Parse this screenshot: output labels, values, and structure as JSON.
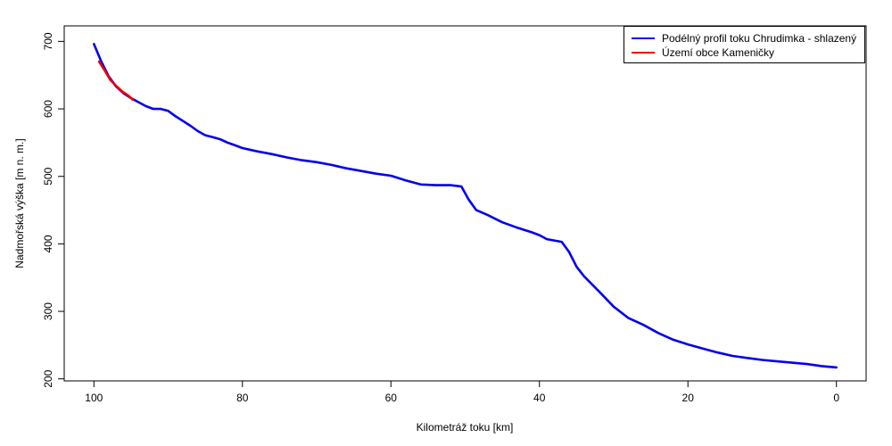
{
  "chart_data": {
    "type": "line",
    "xlabel": "Kilometráž toku [km]",
    "ylabel": "Nadmořská výška [m n. m.]",
    "xlim": [
      104,
      -4
    ],
    "ylim": [
      197,
      723
    ],
    "x_reversed": true,
    "x_ticks": [
      "100",
      "80",
      "60",
      "40",
      "20",
      "0"
    ],
    "y_ticks": [
      "200",
      "300",
      "400",
      "500",
      "600",
      "700"
    ],
    "legend_position": "top-right",
    "grid": false,
    "series": [
      {
        "name": "Podélný profil toku Chrudimka - shlazený",
        "color": "#0000ee",
        "x": [
          100,
          99,
          98,
          97,
          96,
          95,
          94,
          93,
          92,
          91,
          90,
          89,
          88,
          87,
          86,
          85,
          84,
          83,
          82,
          81,
          80,
          78,
          76,
          74,
          72,
          70,
          68,
          66,
          64,
          62,
          60,
          58,
          56,
          54,
          52,
          50.5,
          49.5,
          48.5,
          47,
          45,
          43,
          41,
          40,
          39,
          38,
          37,
          36,
          35,
          34,
          32,
          30,
          28,
          26,
          24,
          22,
          20,
          18,
          16,
          14,
          12,
          10,
          8,
          6,
          4,
          2,
          0
        ],
        "y": [
          696,
          670,
          648,
          633,
          623,
          616,
          610,
          604,
          600,
          600,
          597,
          589,
          582,
          575,
          567,
          561,
          558,
          555,
          550,
          546,
          542,
          537,
          533,
          528,
          524,
          521,
          517,
          512,
          508,
          504,
          501,
          494,
          488,
          487,
          487,
          485,
          465,
          450,
          443,
          432,
          424,
          417,
          413,
          407,
          405,
          403,
          388,
          366,
          352,
          330,
          307,
          290,
          280,
          268,
          258,
          251,
          245,
          239,
          234,
          231,
          228,
          226,
          224,
          222,
          219,
          217
        ]
      },
      {
        "name": "Území obce Kameničky",
        "color": "#ee0000",
        "x": [
          99.3,
          98.5,
          97.8,
          97,
          96.2,
          95.4,
          94.8
        ],
        "y": [
          670,
          656,
          643,
          634,
          626,
          620,
          614
        ]
      }
    ]
  }
}
